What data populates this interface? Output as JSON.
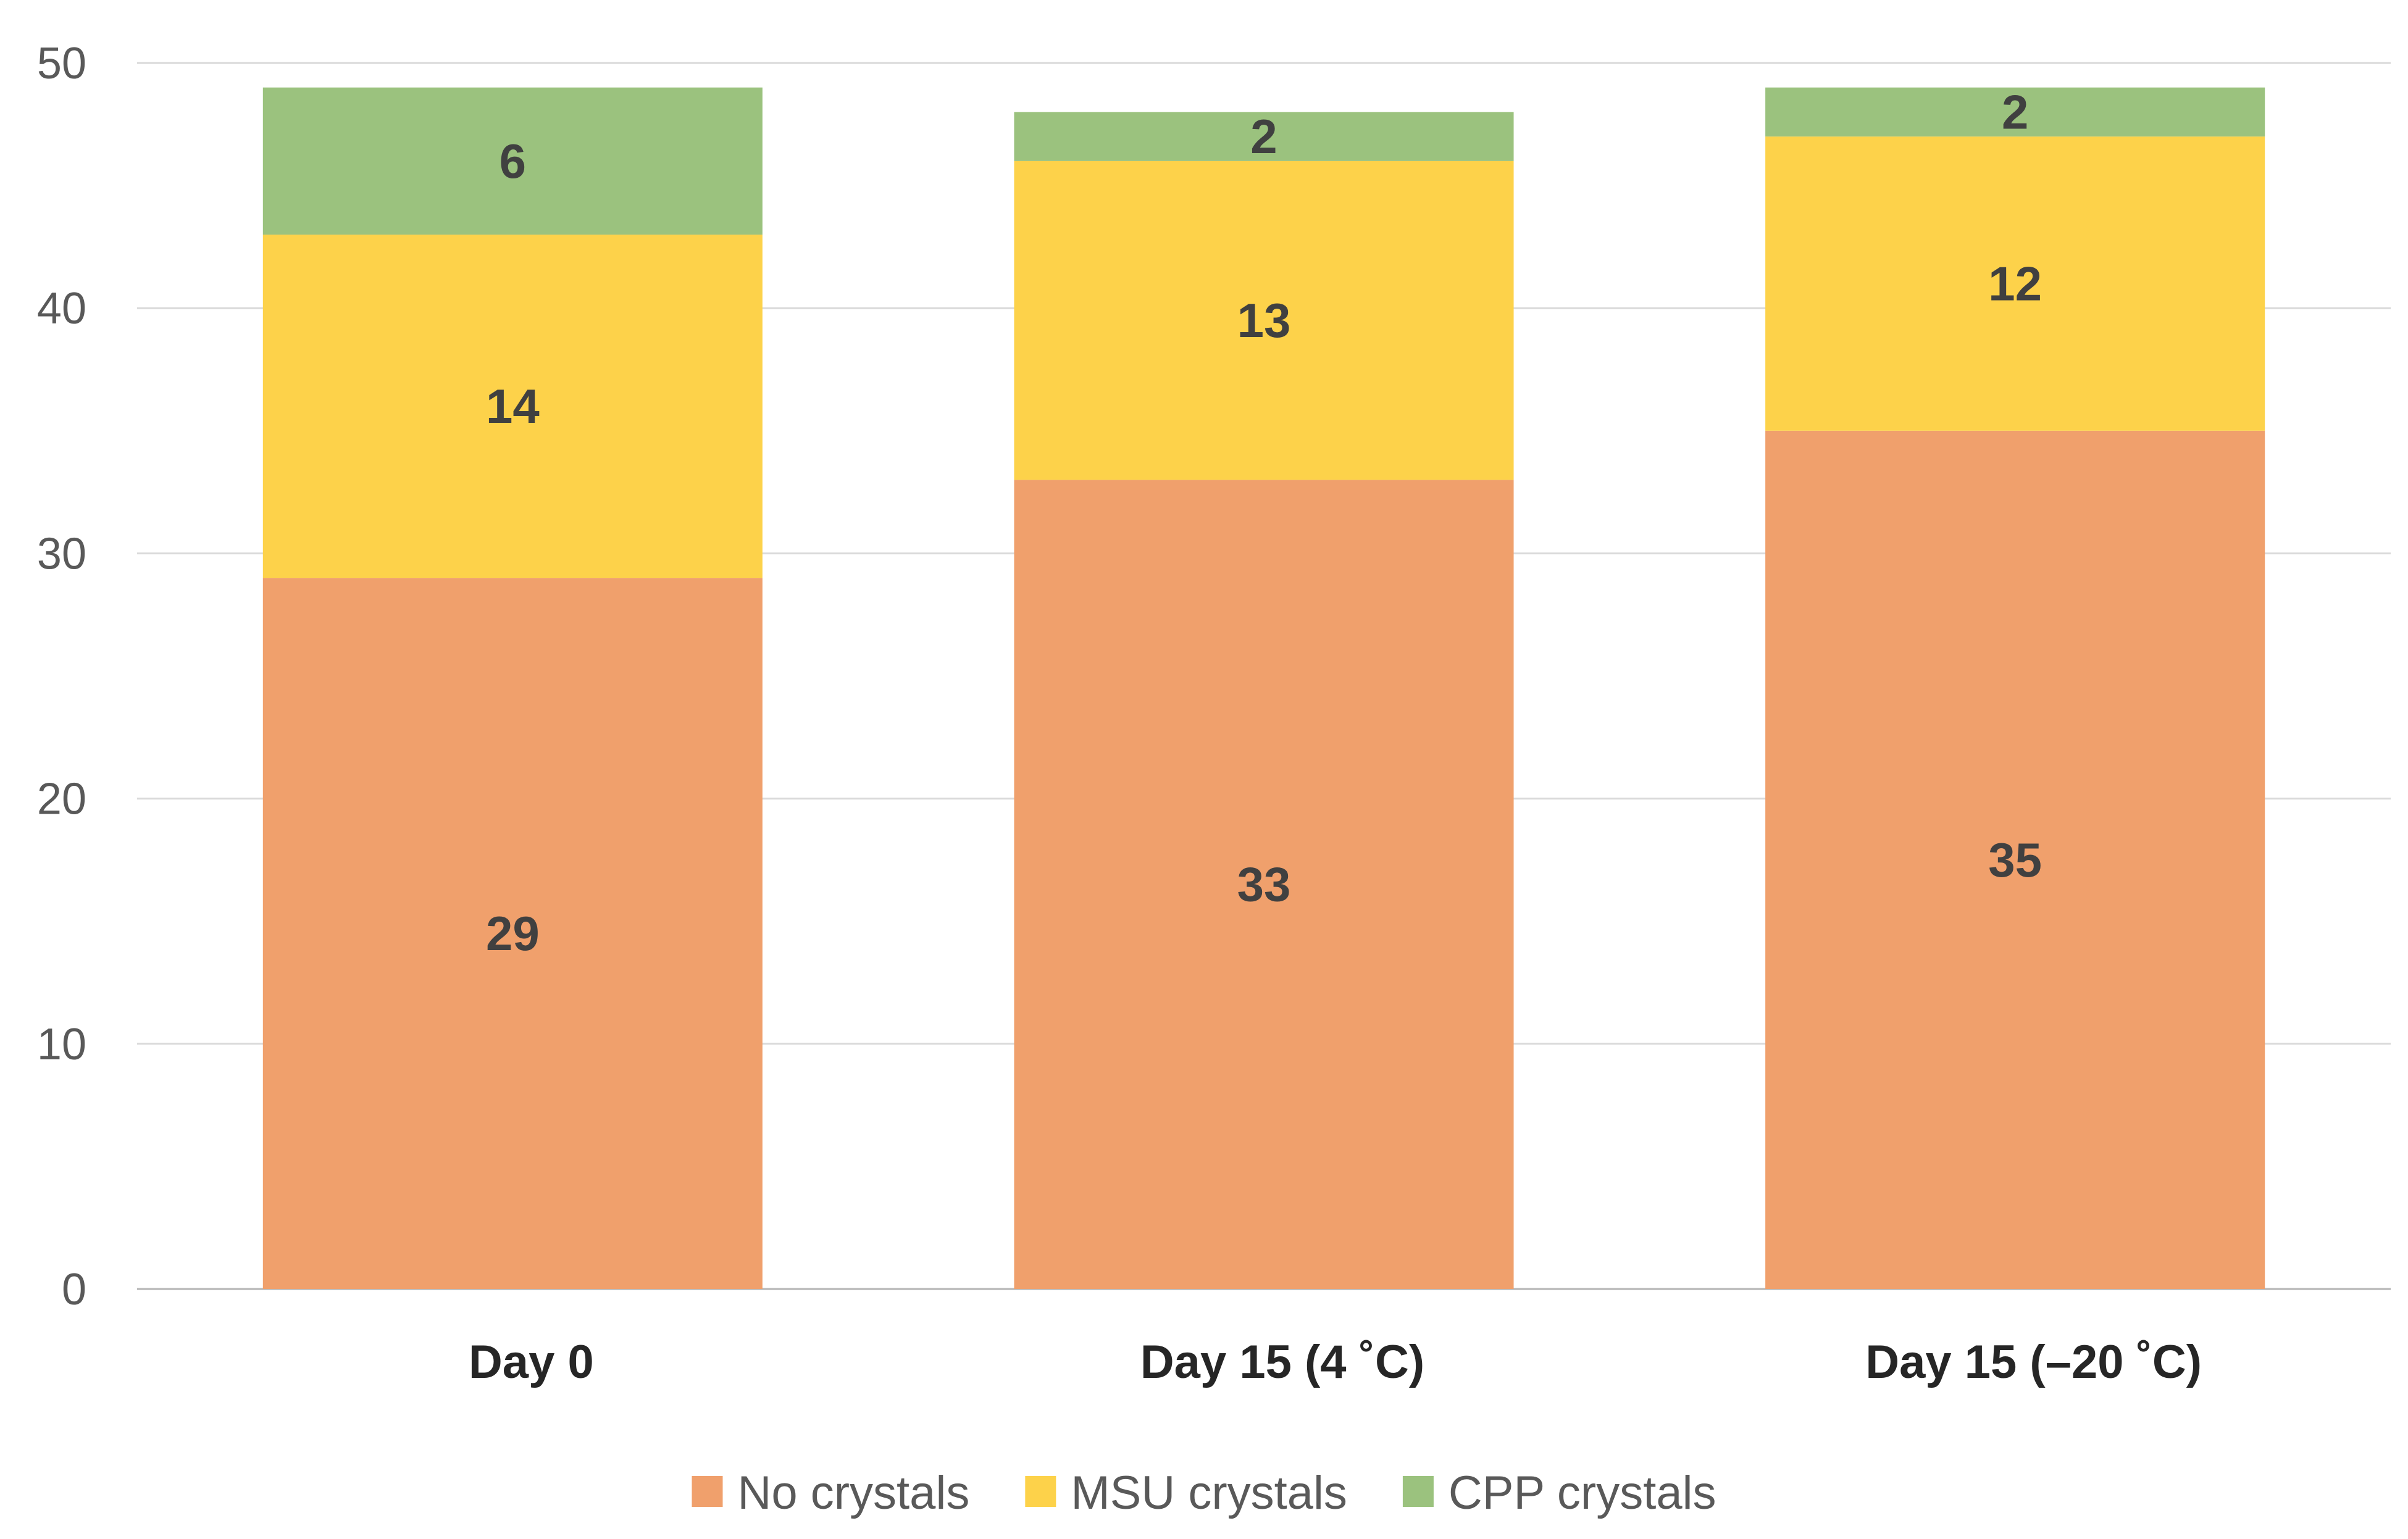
{
  "chart_data": {
    "type": "bar",
    "stacked": true,
    "title": "",
    "xlabel": "",
    "ylabel": "",
    "ylim": [
      0,
      50
    ],
    "yticks": [
      "0",
      "10",
      "20",
      "30",
      "40",
      "50"
    ],
    "ytick_values": [
      0,
      10,
      20,
      30,
      40,
      50
    ],
    "grid": true,
    "legend_position": "bottom",
    "categories": [
      "Day 0",
      "Day 15 (4 ˚C)",
      "Day 15 (–20 ˚C)"
    ],
    "series": [
      {
        "name": "No crystals",
        "color": "#F0A06C",
        "values": [
          29,
          33,
          35
        ]
      },
      {
        "name": "MSU crystals",
        "color": "#FDD24A",
        "values": [
          14,
          13,
          12
        ]
      },
      {
        "name": "CPP crystals",
        "color": "#9BC27E",
        "values": [
          6,
          2,
          2
        ]
      }
    ]
  }
}
